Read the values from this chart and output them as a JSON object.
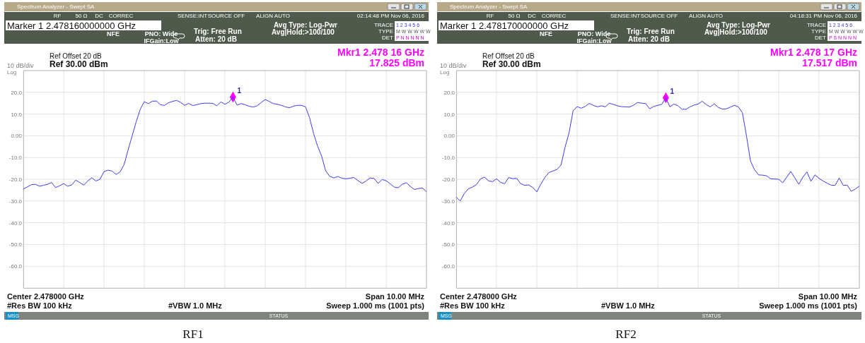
{
  "chart_data": [
    {
      "type": "line",
      "ylim": [
        -70,
        30
      ],
      "grid": true,
      "tick_labels": "y",
      "categories": [
        null,
        null,
        null,
        null,
        null,
        null,
        null,
        null,
        null,
        null,
        null,
        null,
        null,
        null,
        null,
        null,
        null,
        null,
        null,
        null,
        null,
        null,
        null,
        null,
        null,
        null,
        null,
        null,
        null,
        null,
        null,
        null,
        null,
        null,
        null,
        null,
        null,
        null,
        null,
        null,
        null,
        null,
        null,
        null,
        null,
        null,
        null,
        null,
        null,
        null,
        null,
        null,
        null,
        null,
        null,
        null,
        null,
        null,
        null,
        null,
        null,
        null,
        null,
        null,
        null,
        null,
        null,
        null,
        null,
        null,
        null,
        null,
        null,
        null,
        null,
        null,
        null,
        null,
        null,
        null,
        null,
        null,
        null,
        null,
        null,
        null,
        null,
        null,
        null,
        null,
        null,
        null,
        null,
        null,
        null,
        null,
        null,
        null,
        null,
        null,
        null
      ],
      "yticks": [
        {
          "value": 30,
          "label": null
        },
        {
          "value": 20,
          "label": "20.0"
        },
        {
          "value": 10,
          "label": "10.0"
        },
        {
          "value": 0,
          "label": "0.00"
        },
        {
          "value": -10,
          "label": "-10.0"
        },
        {
          "value": -20,
          "label": "-20.0"
        },
        {
          "value": -30,
          "label": "-30.0"
        },
        {
          "value": -40,
          "label": "-40.0"
        },
        {
          "value": -50,
          "label": "-50.0"
        },
        {
          "value": -60,
          "label": "-60.0"
        },
        {
          "value": -70,
          "label": null
        }
      ],
      "series": [
        {
          "color": "#3c3cf0",
          "marker": "none",
          "values": [
            -24.5,
            -23.5,
            -22.5,
            -22.3,
            -23.2,
            -22.8,
            -22.3,
            -21.5,
            -23.8,
            -23.0,
            -22.0,
            -23.2,
            -22.6,
            -20.4,
            -21.5,
            -22.7,
            -20.7,
            -19.3,
            -20.8,
            -20.0,
            -16.5,
            -15.8,
            -16.2,
            -17.8,
            -16.6,
            -13.2,
            -6.4,
            0.0,
            6.5,
            12.2,
            15.7,
            14.8,
            15.9,
            16.0,
            14.3,
            14.0,
            15.2,
            15.8,
            16.3,
            15.4,
            14.0,
            14.9,
            13.9,
            14.3,
            14.8,
            15.0,
            15.0,
            14.9,
            13.8,
            15.6,
            14.5,
            15.5,
            17.8,
            14.1,
            14.8,
            14.3,
            13.6,
            13.2,
            13.8,
            15.3,
            16.7,
            15.8,
            14.8,
            14.5,
            14.0,
            13.3,
            12.9,
            13.6,
            14.0,
            14.0,
            13.3,
            8.3,
            1.0,
            -4.8,
            -9.4,
            -16.2,
            -18.6,
            -19.4,
            -18.7,
            -19.5,
            -19.8,
            -19.5,
            -19.2,
            -20.6,
            -21.9,
            -20.8,
            -19.4,
            -19.6,
            -21.9,
            -20.1,
            -20.7,
            -22.1,
            -23.6,
            -23.9,
            -22.3,
            -21.6,
            -23.3,
            -24.7,
            -24.3,
            -24.0,
            -25.7
          ]
        },
        {
          "type": "scatter",
          "name": "1",
          "color": "#ff00ff",
          "marker": "diamond",
          "values": [
            null,
            null,
            null,
            null,
            null,
            null,
            null,
            null,
            null,
            null,
            null,
            null,
            null,
            null,
            null,
            null,
            null,
            null,
            null,
            null,
            null,
            null,
            null,
            null,
            null,
            null,
            null,
            null,
            null,
            null,
            null,
            null,
            null,
            null,
            null,
            null,
            null,
            null,
            null,
            null,
            null,
            null,
            null,
            null,
            null,
            null,
            null,
            null,
            null,
            null,
            null,
            null,
            17.825,
            null,
            null,
            null,
            null,
            null,
            null,
            null,
            null,
            null,
            null,
            null,
            null,
            null,
            null,
            null,
            null,
            null,
            null,
            null,
            null,
            null,
            null,
            null,
            null,
            null,
            null,
            null,
            null,
            null,
            null,
            null,
            null,
            null,
            null,
            null,
            null,
            null,
            null,
            null,
            null,
            null,
            null,
            null,
            null,
            null,
            null,
            null,
            null
          ]
        }
      ],
      "annotations": [
        "Spectrum Analyzer - Swept SA",
        "RF",
        "50 Ω",
        "DC",
        "CORREC",
        "SENSE:INT",
        "SOURCE OFF",
        "ALIGN AUTO",
        "02:14:48 PM Nov 06, 2016",
        "Marker 1 2.478160000000 GHz",
        "NFE",
        "PNO: Wide",
        "IFGain:Low",
        "Trig: Free Run",
        "Atten: 20 dB",
        "Avg Type: Log-Pwr",
        "Avg|Hold:>100/100",
        "TRACE",
        "1 2 3 4 5 6",
        "TYPE",
        "M W W W W W",
        "DET",
        "P N N N N N",
        "Ref Offset 20 dB",
        "Ref 30.00 dBm",
        "10 dB/div",
        "Log",
        "Mkr1 2.478 16 GHz",
        "17.825 dBm",
        "Center 2.478000 GHz",
        "#Res BW 100 kHz",
        "Span 10.00 MHz",
        "#VBW 1.0 MHz",
        "Sweep  1.000 ms (1001 pts)",
        "MSG",
        "STATUS",
        "RF1"
      ]
    },
    {
      "type": "line",
      "ylim": [
        -70,
        30
      ],
      "grid": true,
      "tick_labels": "y",
      "categories": [
        null,
        null,
        null,
        null,
        null,
        null,
        null,
        null,
        null,
        null,
        null,
        null,
        null,
        null,
        null,
        null,
        null,
        null,
        null,
        null,
        null,
        null,
        null,
        null,
        null,
        null,
        null,
        null,
        null,
        null,
        null,
        null,
        null,
        null,
        null,
        null,
        null,
        null,
        null,
        null,
        null,
        null,
        null,
        null,
        null,
        null,
        null,
        null,
        null,
        null,
        null,
        null,
        null,
        null,
        null,
        null,
        null,
        null,
        null,
        null,
        null,
        null,
        null,
        null,
        null,
        null,
        null,
        null,
        null,
        null,
        null,
        null,
        null,
        null,
        null,
        null,
        null,
        null,
        null,
        null,
        null,
        null,
        null,
        null,
        null,
        null,
        null,
        null,
        null,
        null,
        null,
        null,
        null,
        null,
        null,
        null,
        null,
        null,
        null,
        null,
        null
      ],
      "yticks": [
        {
          "value": 30,
          "label": null
        },
        {
          "value": 20,
          "label": "20.0"
        },
        {
          "value": 10,
          "label": "10.0"
        },
        {
          "value": 0,
          "label": "0.00"
        },
        {
          "value": -10,
          "label": "-10.0"
        },
        {
          "value": -20,
          "label": "-20.0"
        },
        {
          "value": -30,
          "label": "-30.0"
        },
        {
          "value": -40,
          "label": "-40.0"
        },
        {
          "value": -50,
          "label": "-50.0"
        },
        {
          "value": -60,
          "label": "-60.0"
        },
        {
          "value": -70,
          "label": null
        }
      ],
      "series": [
        {
          "color": "#3c3cf0",
          "marker": "none",
          "values": [
            -28.2,
            -30.0,
            -26.6,
            -24.4,
            -23.6,
            -22.5,
            -19.9,
            -19.0,
            -20.7,
            -21.1,
            -19.8,
            -21.4,
            -22.1,
            -19.2,
            -19.7,
            -19.6,
            -22.0,
            -22.8,
            -22.6,
            -23.8,
            -25.8,
            -22.2,
            -19.2,
            -16.9,
            -16.2,
            -15.5,
            -13.5,
            -5.3,
            1.4,
            11.5,
            13.4,
            12.7,
            13.5,
            14.9,
            14.0,
            13.3,
            13.8,
            13.3,
            15.0,
            14.4,
            13.8,
            13.4,
            13.3,
            13.2,
            14.1,
            15.3,
            15.0,
            14.8,
            12.4,
            13.5,
            14.0,
            14.5,
            17.5,
            13.3,
            14.6,
            13.8,
            12.2,
            12.2,
            13.3,
            14.1,
            14.6,
            15.9,
            14.4,
            13.3,
            14.7,
            13.1,
            12.3,
            12.4,
            13.2,
            14.0,
            13.3,
            10.6,
            0.0,
            -11.6,
            -15.6,
            -18.0,
            -18.1,
            -18.4,
            -19.8,
            -19.9,
            -20.0,
            -21.6,
            -19.0,
            -16.4,
            -19.4,
            -22.3,
            -19.0,
            -16.6,
            -20.9,
            -18.0,
            -19.6,
            -20.8,
            -21.8,
            -22.7,
            -22.8,
            -19.4,
            -22.8,
            -22.7,
            -25.5,
            -24.5,
            -23.1
          ]
        },
        {
          "type": "scatter",
          "name": "1",
          "color": "#ff00ff",
          "marker": "diamond",
          "values": [
            null,
            null,
            null,
            null,
            null,
            null,
            null,
            null,
            null,
            null,
            null,
            null,
            null,
            null,
            null,
            null,
            null,
            null,
            null,
            null,
            null,
            null,
            null,
            null,
            null,
            null,
            null,
            null,
            null,
            null,
            null,
            null,
            null,
            null,
            null,
            null,
            null,
            null,
            null,
            null,
            null,
            null,
            null,
            null,
            null,
            null,
            null,
            null,
            null,
            null,
            null,
            null,
            17.517,
            null,
            null,
            null,
            null,
            null,
            null,
            null,
            null,
            null,
            null,
            null,
            null,
            null,
            null,
            null,
            null,
            null,
            null,
            null,
            null,
            null,
            null,
            null,
            null,
            null,
            null,
            null,
            null,
            null,
            null,
            null,
            null,
            null,
            null,
            null,
            null,
            null,
            null,
            null,
            null,
            null,
            null,
            null,
            null,
            null,
            null,
            null,
            null
          ]
        }
      ],
      "annotations": [
        "Spectrum Analyzer - Swept SA",
        "RF",
        "50 Ω",
        "DC",
        "CORREC",
        "SENSE:INT",
        "SOURCE OFF",
        "ALIGN AUTO",
        "04:18:31 PM Nov 06, 2016",
        "Marker 1 2.478170000000 GHz",
        "NFE",
        "PNO: Wide",
        "IFGain:Low",
        "Trig: Free Run",
        "Atten: 20 dB",
        "Avg Type: Log-Pwr",
        "Avg|Hold:>100/100",
        "TRACE",
        "1 2 3 4 5 6",
        "TYPE",
        "M W W W W W",
        "DET",
        "P S N N N N",
        "Ref Offset 20 dB",
        "Ref 30.00 dBm",
        "10 dB/div",
        "Log",
        "Mkr1 2.478 17 GHz",
        "17.517 dBm",
        "Center 2.478000 GHz",
        "#Res BW 100 kHz",
        "Span 10.00 MHz",
        "#VBW 1.0 MHz",
        "Sweep  1.000 ms (1001 pts)",
        "MSG",
        "STATUS",
        "RF2"
      ]
    }
  ]
}
